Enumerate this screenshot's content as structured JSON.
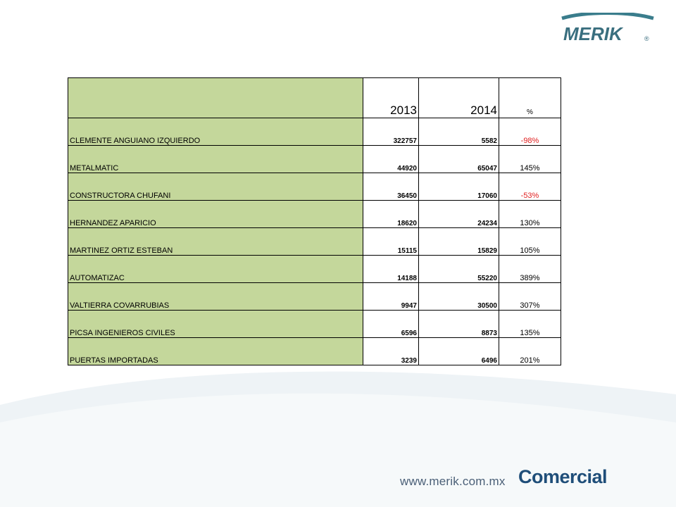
{
  "brand": {
    "logo_text": "MERIK",
    "registered": "®",
    "color": "#1f4e79",
    "accent": "#3a7d8c"
  },
  "table": {
    "headers": {
      "name": "",
      "year1": "2013",
      "year2": "2014",
      "pct": "%"
    },
    "rows": [
      {
        "name": "CLEMENTE ANGUIANO IZQUIERDO",
        "v2013": "322757",
        "v2014": "5582",
        "pct": "-98%",
        "negative": true
      },
      {
        "name": "METALMATIC",
        "v2013": "44920",
        "v2014": "65047",
        "pct": "145%",
        "negative": false
      },
      {
        "name": "CONSTRUCTORA CHUFANI",
        "v2013": "36450",
        "v2014": "17060",
        "pct": "-53%",
        "negative": true
      },
      {
        "name": "HERNANDEZ APARICIO",
        "v2013": "18620",
        "v2014": "24234",
        "pct": "130%",
        "negative": false
      },
      {
        "name": "MARTINEZ ORTIZ ESTEBAN",
        "v2013": "15115",
        "v2014": "15829",
        "pct": "105%",
        "negative": false
      },
      {
        "name": "AUTOMATIZAC",
        "v2013": "14188",
        "v2014": "55220",
        "pct": "389%",
        "negative": false
      },
      {
        "name": "VALTIERRA COVARRUBIAS",
        "v2013": "9947",
        "v2014": "30500",
        "pct": "307%",
        "negative": false
      },
      {
        "name": "PICSA INGENIEROS CIVILES",
        "v2013": "6596",
        "v2014": "8873",
        "pct": "135%",
        "negative": false
      },
      {
        "name": "PUERTAS IMPORTADAS",
        "v2013": "3239",
        "v2014": "6496",
        "pct": "201%",
        "negative": false
      }
    ],
    "name_bg": "#c4d79b",
    "negative_color": "#e02020"
  },
  "footer": {
    "url": "www.merik.com.mx",
    "brand": "Comercial"
  }
}
